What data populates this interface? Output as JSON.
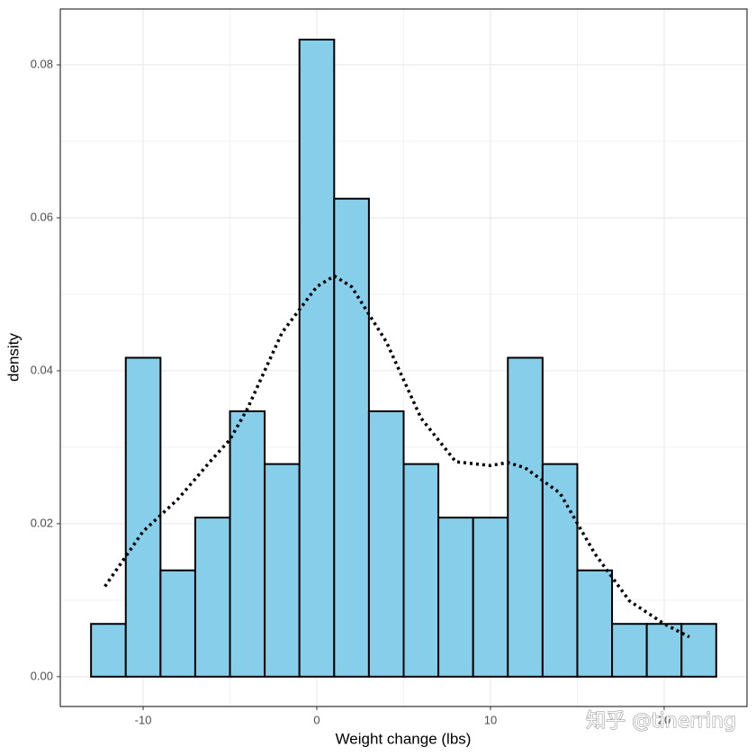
{
  "chart_data": {
    "type": "histogram",
    "bins": [
      -13,
      -11,
      -9,
      -7,
      -5,
      -3,
      -1,
      1,
      3,
      5,
      7,
      9,
      11,
      13,
      15,
      17,
      19,
      21,
      23
    ],
    "values": [
      0.0069,
      0.0417,
      0.0139,
      0.0208,
      0.0347,
      0.0278,
      0.0833,
      0.0625,
      0.0347,
      0.0278,
      0.0208,
      0.0208,
      0.0417,
      0.0278,
      0.0139,
      0.0069,
      0.0069,
      0.0069
    ],
    "color": "#87ceeb",
    "density": {
      "x": [
        -12.2,
        -10,
        -8,
        -6,
        -5,
        -4,
        -2,
        0,
        1,
        2,
        4,
        6,
        8,
        10,
        11,
        12,
        14,
        16,
        18,
        20,
        21.45
      ],
      "y": [
        0.0118,
        0.019,
        0.0232,
        0.0285,
        0.031,
        0.035,
        0.045,
        0.051,
        0.0524,
        0.051,
        0.0438,
        0.0338,
        0.0281,
        0.0276,
        0.028,
        0.0273,
        0.024,
        0.0161,
        0.0099,
        0.0069,
        0.0052
      ],
      "color": "#000000"
    },
    "xlabel": "Weight change (lbs)",
    "ylabel": "density",
    "xlim": [
      -14.77,
      24.77
    ],
    "ylim": [
      -0.0039,
      0.0873
    ],
    "xticks": [
      -10,
      0,
      10,
      20
    ],
    "yticks": [
      {
        "value": 0,
        "label": "0.00"
      },
      0.02,
      0.04,
      0.06,
      0.08
    ],
    "grid": true,
    "watermark": "知乎 @tinerring"
  }
}
